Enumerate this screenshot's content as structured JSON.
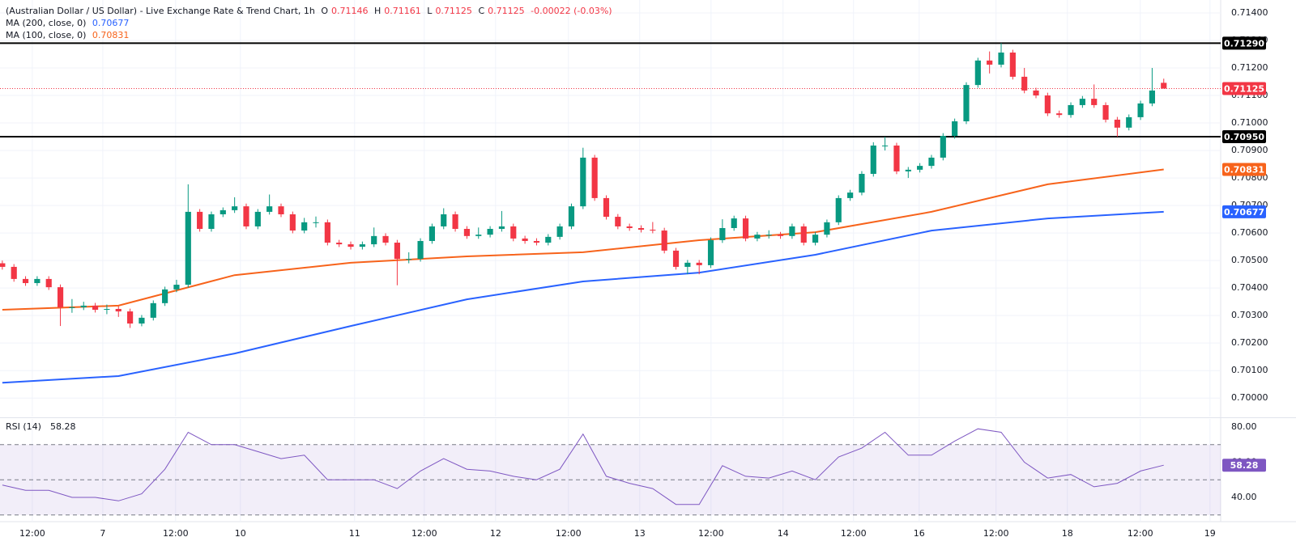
{
  "chart_data": {
    "type": "candlestick",
    "title": "(Australian Dollar / US Dollar) - Live Exchange Rate & Trend Chart, 1h",
    "ohlc_prefixes": [
      "O",
      "H",
      "L",
      "C"
    ],
    "change": "-0.00022 (-0.03%)",
    "up_color": "#089981",
    "down_color": "#f23645",
    "grid": true,
    "x": [
      0,
      1,
      2,
      3,
      4,
      5,
      6,
      7,
      8,
      9,
      10,
      11,
      12,
      13,
      14,
      15,
      16,
      17,
      18,
      19,
      20,
      21,
      22,
      23,
      24,
      25,
      26,
      27,
      28,
      29,
      30,
      31,
      32,
      33,
      34,
      35,
      36,
      37,
      38,
      39,
      40,
      41,
      42,
      43,
      44,
      45,
      46,
      47,
      48,
      49,
      50,
      51,
      52,
      53,
      54,
      55,
      56,
      57,
      58,
      59,
      60,
      61,
      62,
      63,
      64,
      65,
      66,
      67,
      68,
      69,
      70,
      71,
      72,
      73,
      74,
      75,
      76,
      77,
      78,
      79,
      80,
      81,
      82,
      83,
      84,
      85,
      86,
      87,
      88,
      89,
      90,
      91,
      92,
      93,
      94,
      95,
      96,
      97,
      98,
      99,
      100
    ],
    "open": [
      0.7049,
      0.70477,
      0.70433,
      0.70418,
      0.70433,
      0.70403,
      0.7033,
      0.7033,
      0.70336,
      0.70321,
      0.70324,
      0.70315,
      0.70271,
      0.70292,
      0.70345,
      0.70395,
      0.70412,
      0.70677,
      0.70615,
      0.70668,
      0.70683,
      0.70697,
      0.70624,
      0.70677,
      0.70697,
      0.70668,
      0.70609,
      0.70639,
      0.70639,
      0.70565,
      0.70559,
      0.7055,
      0.70559,
      0.70589,
      0.70565,
      0.70506,
      0.70506,
      0.70571,
      0.70624,
      0.70668,
      0.70615,
      0.70589,
      0.70594,
      0.70615,
      0.70624,
      0.7058,
      0.70571,
      0.70565,
      0.70586,
      0.70624,
      0.70697,
      0.70874,
      0.70727,
      0.70659,
      0.70624,
      0.70618,
      0.70612,
      0.70609,
      0.70536,
      0.70477,
      0.70492,
      0.70483,
      0.70574,
      0.70618,
      0.70653,
      0.7058,
      0.70594,
      0.70594,
      0.70589,
      0.70624,
      0.70565,
      0.70594,
      0.70639,
      0.70727,
      0.70747,
      0.70815,
      0.70918,
      0.70918,
      0.70824,
      0.7083,
      0.70844,
      0.70874,
      0.70953,
      0.71006,
      0.71138,
      0.71227,
      0.71212,
      0.71256,
      0.71168,
      0.71118,
      0.711,
      0.71035,
      0.71029,
      0.71065,
      0.71088,
      0.71065,
      0.71012,
      0.70983,
      0.71021,
      0.71071,
      0.71146
    ],
    "high": [
      0.705,
      0.70487,
      0.70443,
      0.70443,
      0.70443,
      0.70413,
      0.7036,
      0.7035,
      0.70346,
      0.7034,
      0.70334,
      0.70325,
      0.70302,
      0.70355,
      0.70405,
      0.7043,
      0.70777,
      0.70687,
      0.70678,
      0.70693,
      0.7073,
      0.70707,
      0.70687,
      0.7074,
      0.70707,
      0.70678,
      0.70655,
      0.7066,
      0.70649,
      0.70575,
      0.70569,
      0.70569,
      0.7062,
      0.70599,
      0.70575,
      0.7053,
      0.70581,
      0.70634,
      0.7069,
      0.70678,
      0.70625,
      0.7062,
      0.70625,
      0.7068,
      0.70634,
      0.7059,
      0.70581,
      0.70596,
      0.70634,
      0.70707,
      0.7091,
      0.70884,
      0.70737,
      0.70669,
      0.70634,
      0.70628,
      0.7064,
      0.70619,
      0.70546,
      0.70502,
      0.70502,
      0.70584,
      0.7065,
      0.70663,
      0.70663,
      0.70604,
      0.7061,
      0.70604,
      0.70634,
      0.70634,
      0.70604,
      0.70649,
      0.70737,
      0.70757,
      0.70825,
      0.7093,
      0.7095,
      0.70928,
      0.7084,
      0.70854,
      0.70884,
      0.70963,
      0.71016,
      0.71148,
      0.71237,
      0.7126,
      0.7129,
      0.71266,
      0.712,
      0.71128,
      0.7111,
      0.71045,
      0.71075,
      0.71098,
      0.7114,
      0.71075,
      0.71022,
      0.71031,
      0.71081,
      0.712,
      0.71161
    ],
    "low": [
      0.70467,
      0.70423,
      0.70408,
      0.70408,
      0.70393,
      0.70262,
      0.7031,
      0.7032,
      0.70311,
      0.70305,
      0.70295,
      0.70255,
      0.70261,
      0.70282,
      0.70335,
      0.70385,
      0.70402,
      0.70605,
      0.70605,
      0.70658,
      0.70673,
      0.70614,
      0.70614,
      0.70667,
      0.70658,
      0.70599,
      0.70599,
      0.7062,
      0.70555,
      0.70549,
      0.7054,
      0.7054,
      0.70549,
      0.70555,
      0.7041,
      0.7049,
      0.70496,
      0.70561,
      0.70614,
      0.70605,
      0.70579,
      0.70579,
      0.70584,
      0.70605,
      0.7057,
      0.70561,
      0.70555,
      0.70555,
      0.70576,
      0.70614,
      0.70687,
      0.70717,
      0.70649,
      0.70614,
      0.70608,
      0.70602,
      0.70599,
      0.70526,
      0.70467,
      0.7045,
      0.7045,
      0.70473,
      0.70564,
      0.70608,
      0.7057,
      0.7057,
      0.7058,
      0.70579,
      0.70579,
      0.70555,
      0.70555,
      0.70584,
      0.70629,
      0.70717,
      0.70737,
      0.70805,
      0.709,
      0.70814,
      0.708,
      0.7082,
      0.70834,
      0.70864,
      0.70943,
      0.70996,
      0.71128,
      0.7118,
      0.71202,
      0.71158,
      0.71108,
      0.7109,
      0.71025,
      0.71019,
      0.71019,
      0.71055,
      0.71055,
      0.71002,
      0.7095,
      0.70973,
      0.71011,
      0.71061,
      0.71125
    ],
    "close": [
      0.70477,
      0.70433,
      0.70418,
      0.70433,
      0.70403,
      0.7033,
      0.7033,
      0.70336,
      0.70321,
      0.70324,
      0.70315,
      0.70271,
      0.70292,
      0.70345,
      0.70395,
      0.70412,
      0.70677,
      0.70615,
      0.70668,
      0.70683,
      0.70697,
      0.70624,
      0.70677,
      0.70697,
      0.70668,
      0.70609,
      0.70639,
      0.70639,
      0.70565,
      0.70559,
      0.7055,
      0.70559,
      0.70589,
      0.70565,
      0.70506,
      0.70506,
      0.70571,
      0.70624,
      0.70668,
      0.70615,
      0.70589,
      0.70594,
      0.70615,
      0.70624,
      0.7058,
      0.70571,
      0.70565,
      0.70586,
      0.70624,
      0.70697,
      0.70874,
      0.70727,
      0.70659,
      0.70624,
      0.70618,
      0.70612,
      0.70609,
      0.70536,
      0.70477,
      0.70492,
      0.70483,
      0.70574,
      0.70618,
      0.70653,
      0.7058,
      0.70594,
      0.70594,
      0.70589,
      0.70624,
      0.70565,
      0.70594,
      0.70639,
      0.70727,
      0.70747,
      0.70815,
      0.70918,
      0.70918,
      0.70824,
      0.7083,
      0.70844,
      0.70874,
      0.70953,
      0.71006,
      0.71138,
      0.71227,
      0.71212,
      0.71256,
      0.71168,
      0.71118,
      0.711,
      0.71035,
      0.71029,
      0.71065,
      0.71088,
      0.71065,
      0.71012,
      0.70983,
      0.71021,
      0.71071,
      0.71118,
      0.71125
    ],
    "ma": [
      {
        "name": "MA (200, close, 0)",
        "color": "#2962ff",
        "x": [
          0,
          10,
          20,
          30,
          40,
          50,
          60,
          70,
          80,
          90,
          100
        ],
        "values": [
          0.70056,
          0.7008,
          0.70162,
          0.70262,
          0.70359,
          0.70424,
          0.70456,
          0.70521,
          0.70609,
          0.70653,
          0.70677
        ]
      },
      {
        "name": "MA (100, close, 0)",
        "color": "#f7631b",
        "x": [
          0,
          10,
          20,
          30,
          40,
          50,
          60,
          70,
          80,
          90,
          100
        ],
        "values": [
          0.70321,
          0.70336,
          0.70447,
          0.70492,
          0.70515,
          0.7053,
          0.70574,
          0.70603,
          0.70677,
          0.70777,
          0.70831
        ]
      }
    ],
    "levels": [
      {
        "value": 0.7129,
        "label": "0.71290"
      },
      {
        "value": 0.7095,
        "label": "0.70950"
      }
    ],
    "level_color": "#000000",
    "xlim": [
      -0.2,
      104.9
    ],
    "ylim": [
      0.69933,
      0.71447
    ],
    "xticks": [
      {
        "value": 2.58,
        "label": "12:00"
      },
      {
        "value": 8.65,
        "label": "7"
      },
      {
        "value": 14.92,
        "label": "12:00"
      },
      {
        "value": 20.5,
        "label": "10"
      },
      {
        "value": 30.33,
        "label": "11"
      },
      {
        "value": 36.33,
        "label": "12:00"
      },
      {
        "value": 42.47,
        "label": "12"
      },
      {
        "value": 48.74,
        "label": "12:00"
      },
      {
        "value": 54.88,
        "label": "13"
      },
      {
        "value": 61.02,
        "label": "12:00"
      },
      {
        "value": 67.22,
        "label": "14"
      },
      {
        "value": 73.29,
        "label": "12:00"
      },
      {
        "value": 78.94,
        "label": "16"
      },
      {
        "value": 85.56,
        "label": "12:00"
      },
      {
        "value": 91.7,
        "label": "18"
      },
      {
        "value": 97.98,
        "label": "12:00"
      },
      {
        "value": 103.98,
        "label": "19"
      }
    ],
    "yticks": [
      {
        "value": 0.714,
        "label": "0.71400"
      },
      {
        "value": 0.713,
        "label": "0.71300"
      },
      {
        "value": 0.712,
        "label": "0.71200"
      },
      {
        "value": 0.711,
        "label": "0.71100"
      },
      {
        "value": 0.71,
        "label": "0.71000"
      },
      {
        "value": 0.709,
        "label": "0.70900"
      },
      {
        "value": 0.708,
        "label": "0.70800"
      },
      {
        "value": 0.707,
        "label": "0.70700"
      },
      {
        "value": 0.706,
        "label": "0.70600"
      },
      {
        "value": 0.705,
        "label": "0.70500"
      },
      {
        "value": 0.704,
        "label": "0.70400"
      },
      {
        "value": 0.703,
        "label": "0.70300"
      },
      {
        "value": 0.702,
        "label": "0.70200"
      },
      {
        "value": 0.701,
        "label": "0.70100"
      },
      {
        "value": 0.7,
        "label": "0.70000"
      }
    ],
    "rsi": {
      "name": "RSI (14)",
      "color": "#7e57c2",
      "levels": [
        30,
        50,
        70
      ],
      "ylim": [
        26.2,
        84.6
      ],
      "yticks": [
        {
          "value": 80,
          "label": "80.00"
        },
        {
          "value": 60,
          "label": "60.00"
        },
        {
          "value": 40,
          "label": "40.00"
        }
      ],
      "x": [
        0,
        2,
        4,
        6,
        8,
        10,
        12,
        14,
        16,
        18,
        20,
        22,
        24,
        26,
        28,
        30,
        32,
        34,
        36,
        38,
        40,
        42,
        44,
        46,
        48,
        50,
        52,
        54,
        56,
        58,
        60,
        62,
        64,
        66,
        68,
        70,
        72,
        74,
        76,
        78,
        80,
        82,
        84,
        86,
        88,
        90,
        92,
        94,
        96,
        98,
        100
      ],
      "values": [
        47,
        44,
        44,
        40,
        40,
        38,
        42,
        56,
        77,
        70,
        70,
        66,
        62,
        64,
        50,
        50,
        50,
        45,
        55,
        62,
        56,
        55,
        52,
        50,
        56,
        76,
        52,
        48,
        45,
        36,
        36,
        58,
        52,
        51,
        55,
        50,
        63,
        68,
        77,
        64,
        64,
        72,
        79,
        77,
        60,
        51,
        53,
        46,
        48,
        55,
        58.28
      ]
    }
  }
}
